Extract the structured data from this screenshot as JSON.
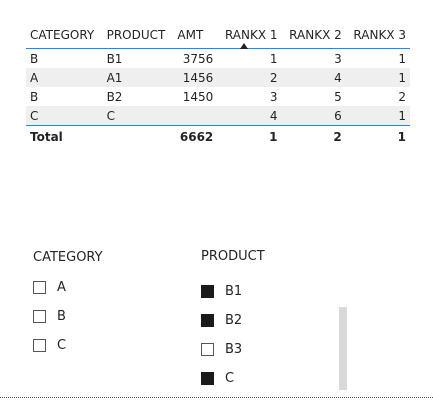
{
  "table": {
    "columns": [
      "CATEGORY",
      "PRODUCT",
      "AMT",
      "RANKX 1",
      "RANKX 2",
      "RANKX 3"
    ],
    "rows": [
      [
        "B",
        "B1",
        "3756",
        "1",
        "3",
        "1"
      ],
      [
        "A",
        "A1",
        "1456",
        "2",
        "4",
        "1"
      ],
      [
        "B",
        "B2",
        "1450",
        "3",
        "5",
        "2"
      ],
      [
        "C",
        "C",
        "",
        "4",
        "6",
        "1"
      ]
    ],
    "total": [
      "Total",
      "",
      "6662",
      "1",
      "2",
      "1"
    ],
    "sorted_column": "RANKX 1"
  },
  "category_slicer": {
    "title": "CATEGORY",
    "items": [
      {
        "label": "A",
        "checked": false
      },
      {
        "label": "B",
        "checked": false
      },
      {
        "label": "C",
        "checked": false
      }
    ]
  },
  "product_slicer": {
    "title": "PRODUCT",
    "items": [
      {
        "label": "B1",
        "checked": true
      },
      {
        "label": "B2",
        "checked": true
      },
      {
        "label": "B3",
        "checked": false
      },
      {
        "label": "C",
        "checked": true
      }
    ]
  }
}
